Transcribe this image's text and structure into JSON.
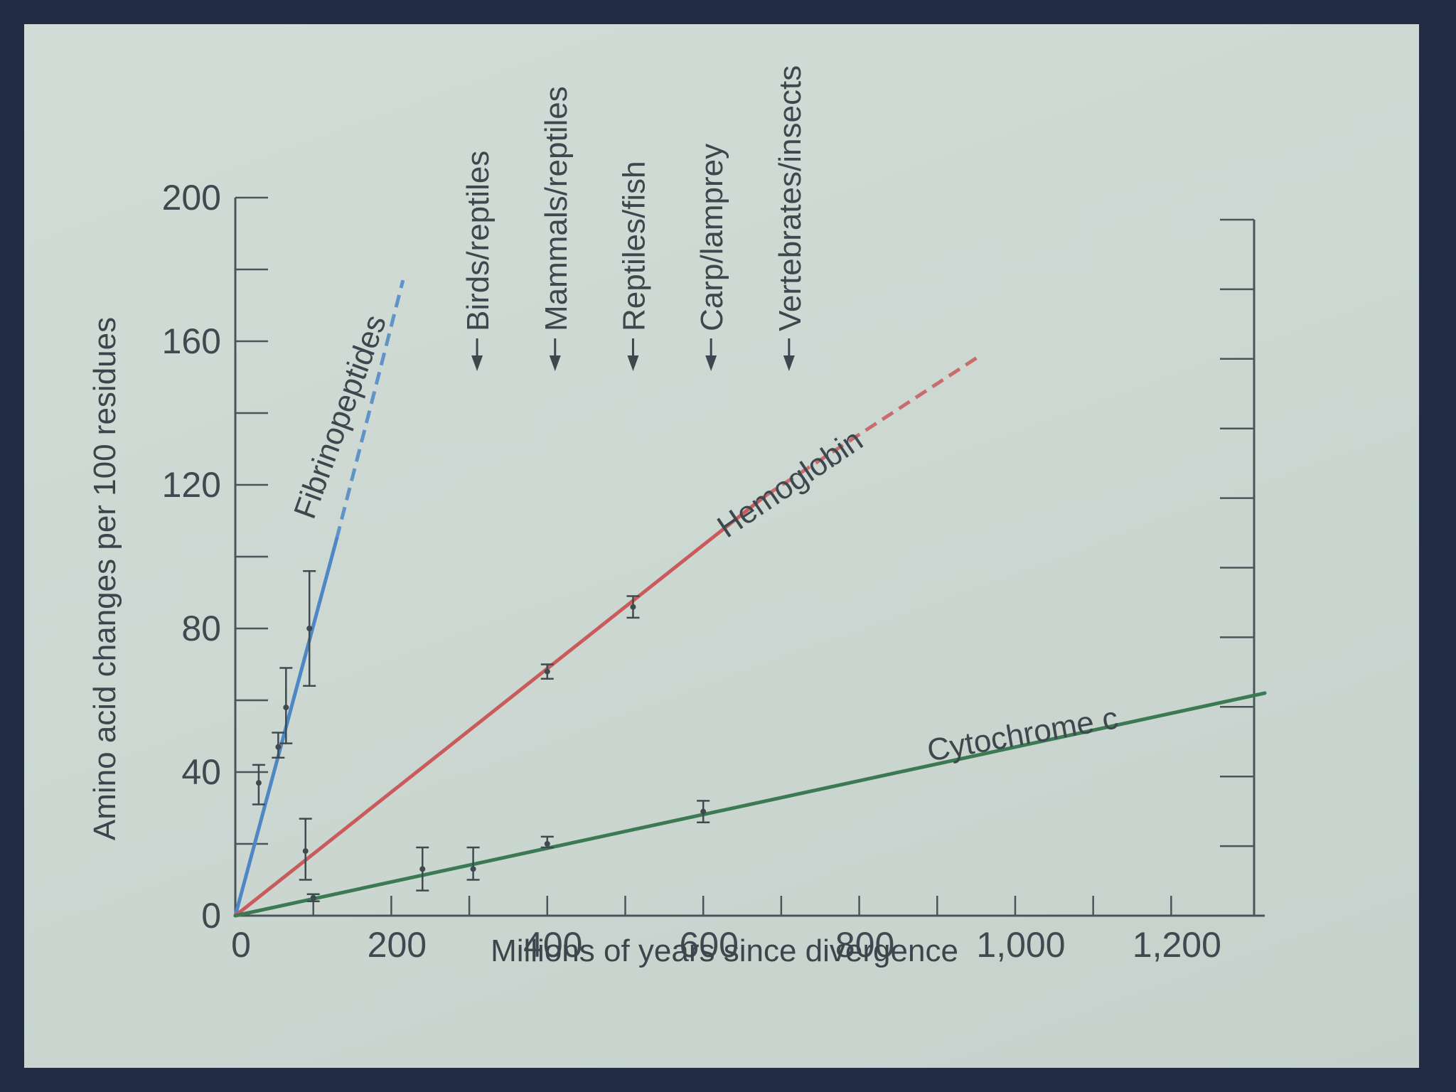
{
  "chart_data": {
    "type": "line",
    "title": "",
    "xlabel": "Millions of years since divergence",
    "ylabel": "Amino acid changes per 100 residues",
    "xlim": [
      0,
      1320
    ],
    "ylim": [
      0,
      200
    ],
    "x_ticks": [
      0,
      100,
      200,
      300,
      400,
      500,
      600,
      700,
      800,
      900,
      1000,
      1100,
      1200
    ],
    "x_tick_labels": [
      "0",
      "200",
      "400",
      "600",
      "800",
      "1,000",
      "1,200"
    ],
    "x_tick_label_values": [
      0,
      200,
      400,
      600,
      800,
      1000,
      1200
    ],
    "y_ticks": [
      0,
      20,
      40,
      60,
      80,
      100,
      120,
      140,
      160,
      180,
      200
    ],
    "y_tick_labels": [
      "0",
      "40",
      "80",
      "120",
      "160",
      "200"
    ],
    "y_tick_label_values": [
      0,
      40,
      80,
      120,
      160,
      200
    ],
    "grid": false,
    "series": [
      {
        "name": "Fibrinopeptides",
        "color": "#4d87c4",
        "line_start": [
          0,
          0
        ],
        "line_solid_end": [
          130,
          105
        ],
        "line_dashed_end": [
          215,
          177
        ],
        "points": [
          {
            "x": 30,
            "y": 37,
            "ylo": 31,
            "yhi": 42
          },
          {
            "x": 55,
            "y": 47,
            "ylo": 44,
            "yhi": 51
          },
          {
            "x": 65,
            "y": 58,
            "ylo": 48,
            "yhi": 69
          },
          {
            "x": 95,
            "y": 80,
            "ylo": 64,
            "yhi": 96
          }
        ]
      },
      {
        "name": "Hemoglobin",
        "color": "#c95b5b",
        "line_start": [
          0,
          0
        ],
        "line_solid_end": [
          680,
          117
        ],
        "line_dashed_end": [
          955,
          156
        ],
        "points": [
          {
            "x": 90,
            "y": 18,
            "ylo": 10,
            "yhi": 27
          },
          {
            "x": 400,
            "y": 68,
            "ylo": 66,
            "yhi": 70
          },
          {
            "x": 510,
            "y": 86,
            "ylo": 83,
            "yhi": 89
          }
        ]
      },
      {
        "name": "Cytochrome c",
        "color": "#3b7a53",
        "line_start": [
          0,
          0
        ],
        "line_solid_end": [
          1320,
          62
        ],
        "points": [
          {
            "x": 100,
            "y": 5,
            "ylo": 4,
            "yhi": 6
          },
          {
            "x": 240,
            "y": 13,
            "ylo": 7,
            "yhi": 19
          },
          {
            "x": 305,
            "y": 13,
            "ylo": 10,
            "yhi": 19
          },
          {
            "x": 400,
            "y": 20,
            "ylo": 19,
            "yhi": 22
          },
          {
            "x": 600,
            "y": 29,
            "ylo": 26,
            "yhi": 32
          }
        ]
      }
    ],
    "series_labels": [
      {
        "text": "Fibrinopeptides",
        "x": 100,
        "y": 110,
        "angle": -70
      },
      {
        "text": "Hemoglobin",
        "x": 630,
        "y": 105,
        "angle": -34
      },
      {
        "text": "Cytochrome c",
        "x": 890,
        "y": 43,
        "angle": -10
      }
    ],
    "divergence_events": [
      {
        "text": "Birds/reptiles",
        "x": 310
      },
      {
        "text": "Mammals/reptiles",
        "x": 410
      },
      {
        "text": "Reptiles/fish",
        "x": 510
      },
      {
        "text": "Carp/lamprey",
        "x": 610
      },
      {
        "text": "Vertebrates/insects",
        "x": 710
      }
    ],
    "right_axis_ticks": 10
  }
}
